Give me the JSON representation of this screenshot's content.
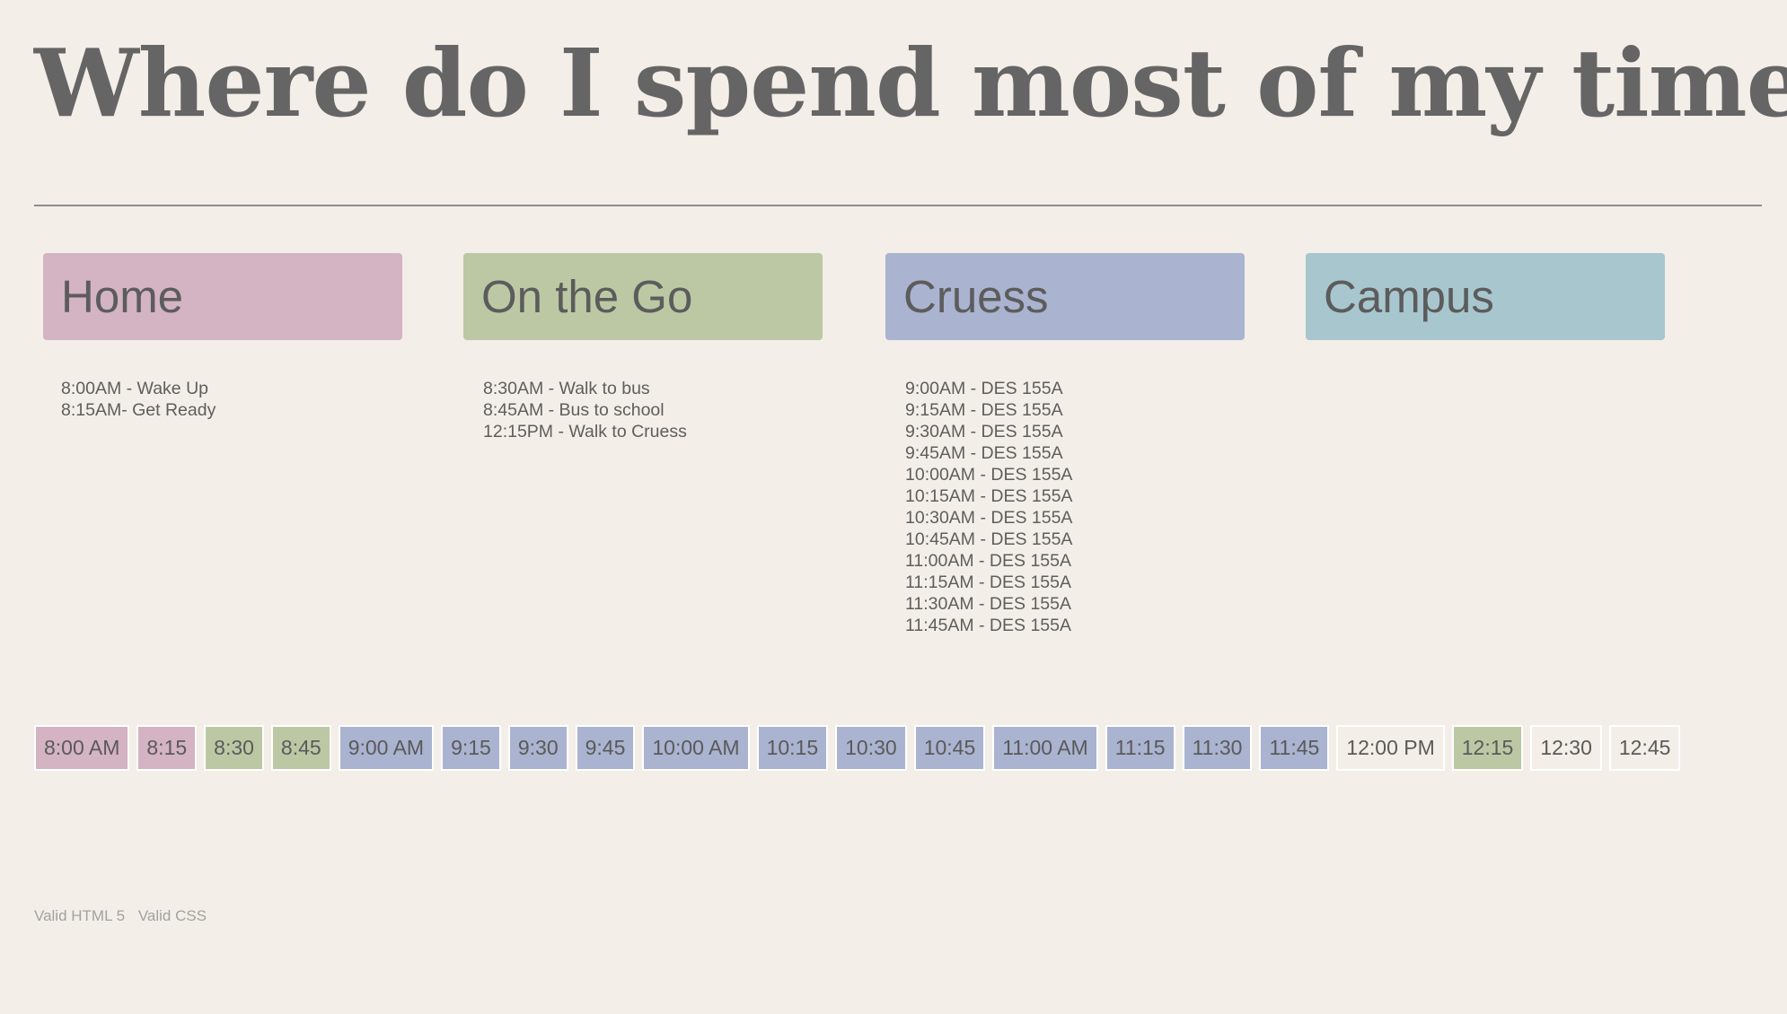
{
  "page": {
    "title": "Where do I spend most of my time?"
  },
  "colors": {
    "background": "#f3eee8",
    "home": "#d4b3c2",
    "on_the_go": "#bcc8a4",
    "cruess": "#aab3cf",
    "campus": "#a8c6ce",
    "empty": "#f3eee8"
  },
  "categories": [
    {
      "label": "Home",
      "color": "#d4b3c2"
    },
    {
      "label": "On the Go",
      "color": "#bcc8a4"
    },
    {
      "label": "Cruess",
      "color": "#aab3cf"
    },
    {
      "label": "Campus",
      "color": "#a8c6ce"
    }
  ],
  "events": {
    "home": [
      "8:00AM - Wake Up",
      "8:15AM- Get Ready"
    ],
    "on_the_go": [
      "8:30AM - Walk to bus",
      "8:45AM - Bus to school",
      "12:15PM - Walk to Cruess"
    ],
    "cruess": [
      "9:00AM - DES 155A",
      "9:15AM - DES 155A",
      "9:30AM - DES 155A",
      "9:45AM - DES 155A",
      "10:00AM - DES 155A",
      "10:15AM - DES 155A",
      "10:30AM - DES 155A",
      "10:45AM - DES 155A",
      "11:00AM - DES 155A",
      "11:15AM - DES 155A",
      "11:30AM - DES 155A",
      "11:45AM - DES 155A"
    ],
    "campus": []
  },
  "timeline": [
    {
      "label": "8:00 AM",
      "category": "home"
    },
    {
      "label": "8:15",
      "category": "home"
    },
    {
      "label": "8:30",
      "category": "on_the_go"
    },
    {
      "label": "8:45",
      "category": "on_the_go"
    },
    {
      "label": "9:00 AM",
      "category": "cruess"
    },
    {
      "label": "9:15",
      "category": "cruess"
    },
    {
      "label": "9:30",
      "category": "cruess"
    },
    {
      "label": "9:45",
      "category": "cruess"
    },
    {
      "label": "10:00 AM",
      "category": "cruess"
    },
    {
      "label": "10:15",
      "category": "cruess"
    },
    {
      "label": "10:30",
      "category": "cruess"
    },
    {
      "label": "10:45",
      "category": "cruess"
    },
    {
      "label": "11:00 AM",
      "category": "cruess"
    },
    {
      "label": "11:15",
      "category": "cruess"
    },
    {
      "label": "11:30",
      "category": "cruess"
    },
    {
      "label": "11:45",
      "category": "cruess"
    },
    {
      "label": "12:00 PM",
      "category": "empty"
    },
    {
      "label": "12:15",
      "category": "on_the_go"
    },
    {
      "label": "12:30",
      "category": "empty"
    },
    {
      "label": "12:45",
      "category": "empty"
    }
  ],
  "footer": {
    "html_link": "Valid HTML 5",
    "css_link": "Valid CSS"
  }
}
